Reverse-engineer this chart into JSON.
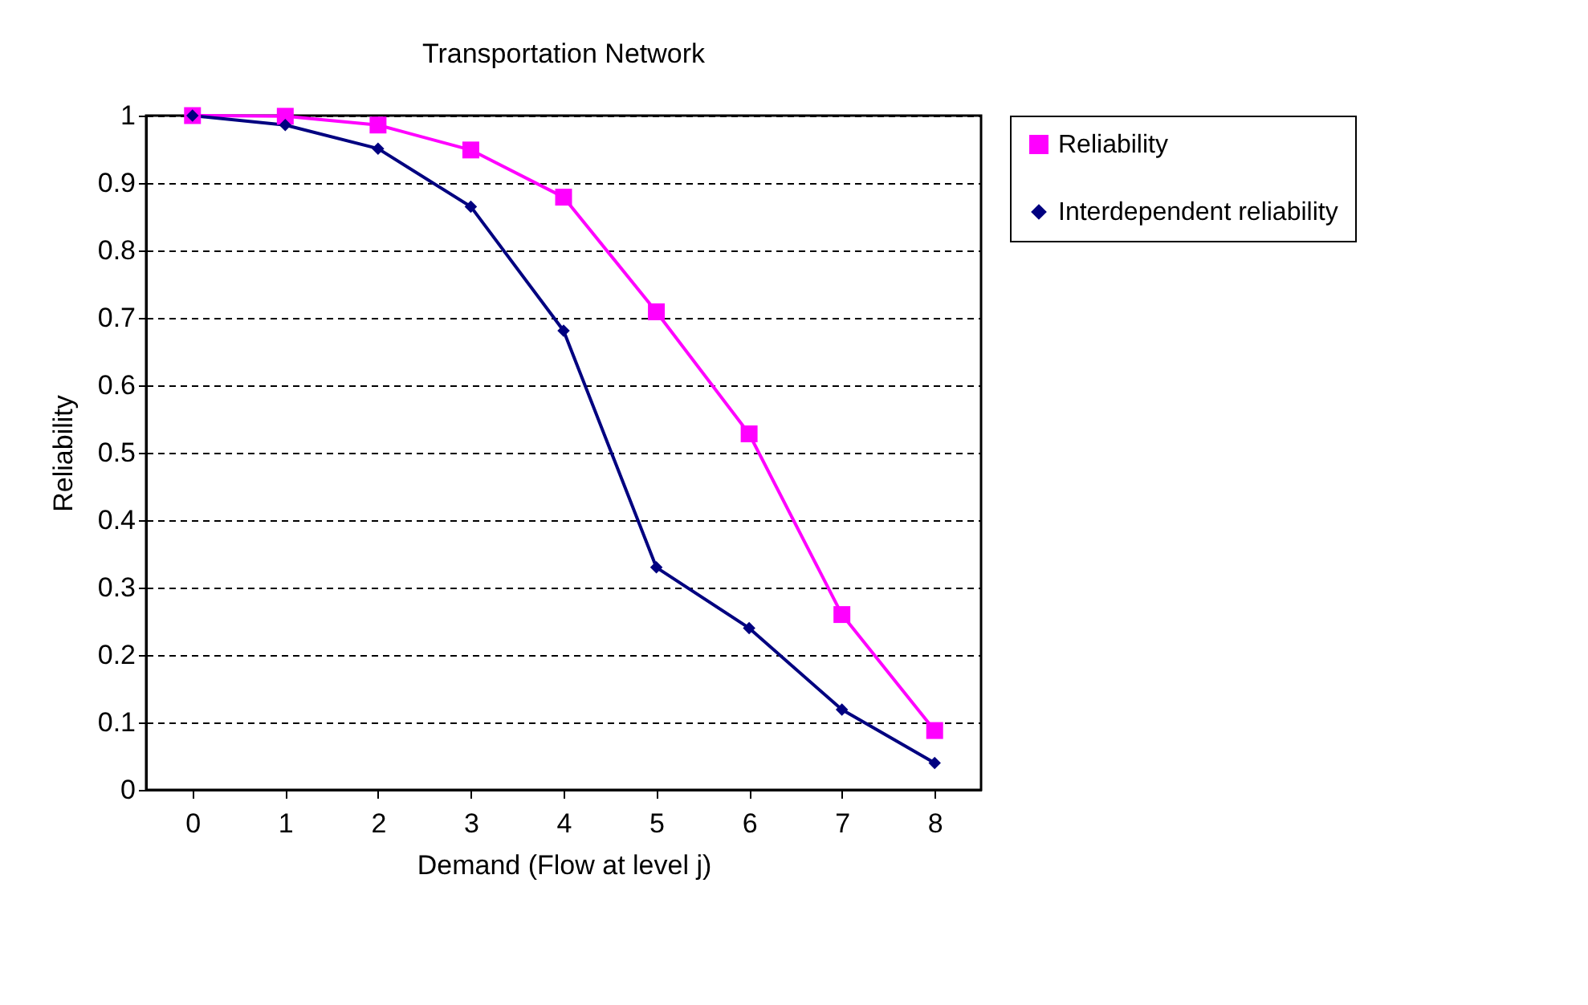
{
  "chart_data": {
    "type": "line",
    "title": "Transportation Network",
    "xlabel": "Demand (Flow at level j)",
    "ylabel": "Reliability",
    "categories": [
      "0",
      "1",
      "2",
      "3",
      "4",
      "5",
      "6",
      "7",
      "8"
    ],
    "series": [
      {
        "name": "Reliability",
        "color": "#ff00ff",
        "marker": "square",
        "values": [
          1.0,
          0.999,
          0.986,
          0.949,
          0.879,
          0.709,
          0.528,
          0.26,
          0.088
        ]
      },
      {
        "name": "Interdependent reliability",
        "color": "#000080",
        "marker": "diamond",
        "values": [
          1.0,
          0.986,
          0.951,
          0.865,
          0.681,
          0.33,
          0.24,
          0.119,
          0.04
        ]
      }
    ],
    "ylim": [
      0,
      1
    ],
    "yticks": [
      0,
      0.1,
      0.2,
      0.3,
      0.4,
      0.5,
      0.6,
      0.7,
      0.8,
      0.9,
      1
    ],
    "grid": "y",
    "legend": "right",
    "line_style": "solid"
  }
}
